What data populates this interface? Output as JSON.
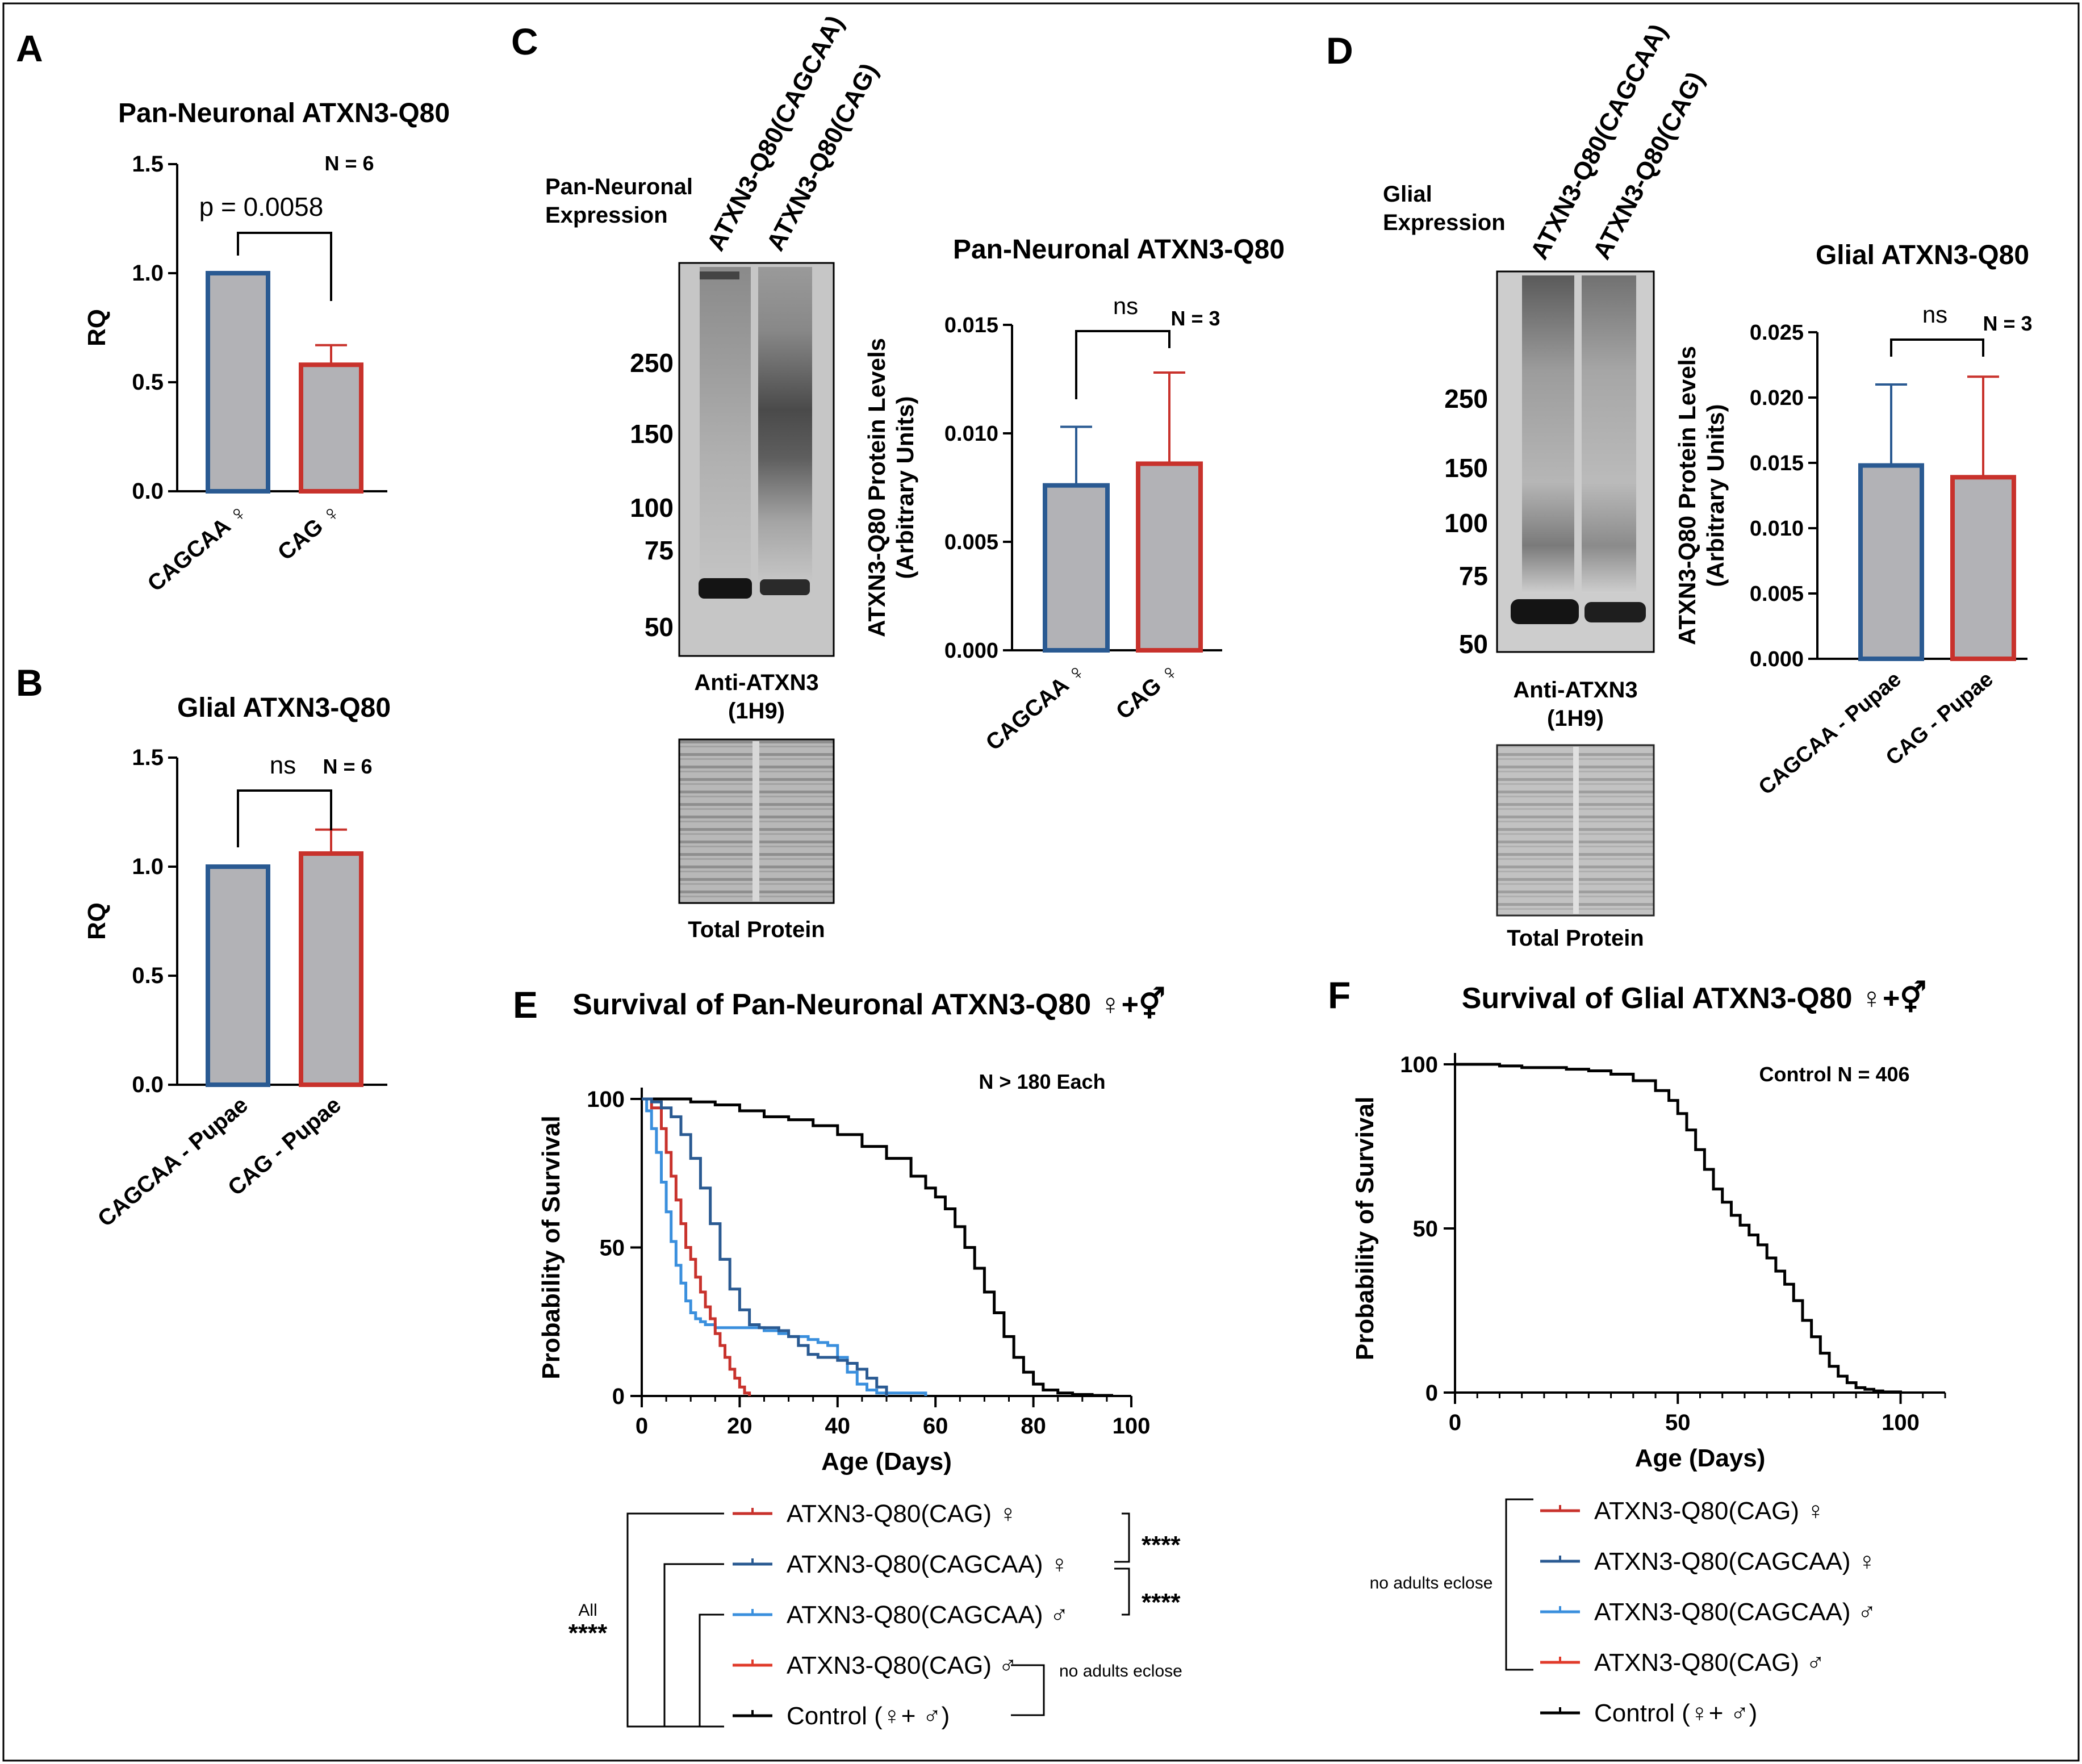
{
  "colors": {
    "blue": "#2a5a92",
    "red": "#c8322c",
    "light_blue": "#3a8fdd",
    "bright_red": "#e03a2a",
    "bar_fill": "#b2b2b6",
    "control": "#000000"
  },
  "panel_letters": {
    "A": "A",
    "B": "B",
    "C": "C",
    "D": "D",
    "E": "E",
    "F": "F"
  },
  "blots": {
    "C": {
      "expression": [
        "Pan-Neuronal",
        "Expression"
      ],
      "lanes": [
        "ATXN3-Q80(CAGCAA)",
        "ATXN3-Q80(CAG)"
      ],
      "mw_markers": [
        "250",
        "150",
        "100",
        "75",
        "50"
      ],
      "antibody": [
        "Anti-ATXN3",
        "(1H9)"
      ],
      "loading": "Total Protein"
    },
    "D": {
      "expression": [
        "Glial",
        "Expression"
      ],
      "lanes": [
        "ATXN3-Q80(CAGCAA)",
        "ATXN3-Q80(CAG)"
      ],
      "mw_markers": [
        "250",
        "150",
        "100",
        "75",
        "50"
      ],
      "antibody": [
        "Anti-ATXN3",
        "(1H9)"
      ],
      "loading": "Total Protein"
    }
  },
  "chart_data": [
    {
      "id": "A",
      "type": "bar",
      "title": "Pan-Neuronal ATXN3-Q80",
      "ylabel": "RQ",
      "xlabel": "",
      "categories": [
        "CAGCAA ♀",
        "CAG ♀"
      ],
      "values": [
        1.0,
        0.58
      ],
      "errors": [
        0,
        0.09
      ],
      "ylim": [
        0,
        1.5
      ],
      "yticks": [
        "0.0",
        "0.5",
        "1.0",
        "1.5"
      ],
      "significance": "p = 0.0058",
      "n_label": "N = 6"
    },
    {
      "id": "B",
      "type": "bar",
      "title": "Glial ATXN3-Q80",
      "ylabel": "RQ",
      "xlabel": "",
      "categories": [
        "CAGCAA - Pupae",
        "CAG - Pupae"
      ],
      "values": [
        1.0,
        1.06
      ],
      "errors": [
        0,
        0.11
      ],
      "ylim": [
        0,
        1.5
      ],
      "yticks": [
        "0.0",
        "0.5",
        "1.0",
        "1.5"
      ],
      "significance": "ns",
      "n_label": "N = 6"
    },
    {
      "id": "C",
      "type": "bar",
      "title": "Pan-Neuronal ATXN3-Q80",
      "ylabel": [
        "ATXN3-Q80 Protein Levels",
        "(Arbitrary Units)"
      ],
      "xlabel": "",
      "categories": [
        "CAGCAA ♀",
        "CAG ♀"
      ],
      "values": [
        0.0076,
        0.0086
      ],
      "errors": [
        0.0027,
        0.0042
      ],
      "ylim": [
        0,
        0.015
      ],
      "yticks": [
        "0.000",
        "0.005",
        "0.010",
        "0.015"
      ],
      "significance": "ns",
      "n_label": "N = 3"
    },
    {
      "id": "D",
      "type": "bar",
      "title": "Glial ATXN3-Q80",
      "ylabel": [
        "ATXN3-Q80 Protein Levels",
        "(Arbitrary Units)"
      ],
      "xlabel": "",
      "categories": [
        "CAGCAA - Pupae",
        "CAG - Pupae"
      ],
      "values": [
        0.0148,
        0.0139
      ],
      "errors": [
        0.0062,
        0.0077
      ],
      "ylim": [
        0,
        0.025
      ],
      "yticks": [
        "0.000",
        "0.005",
        "0.010",
        "0.015",
        "0.020",
        "0.025"
      ],
      "significance": "ns",
      "n_label": "N = 3"
    },
    {
      "id": "E",
      "type": "line",
      "title": "Survival of Pan-Neuronal ATXN3-Q80 ♀+⚥",
      "xlabel": "Age (Days)",
      "ylabel": "Probability of Survival",
      "xlim": [
        0,
        100
      ],
      "ylim": [
        0,
        100
      ],
      "xticks": [
        "0",
        "20",
        "40",
        "60",
        "80",
        "100"
      ],
      "yticks": [
        "0",
        "50",
        "100"
      ],
      "n_label": "N > 180 Each",
      "series": [
        {
          "name": "ATXN3-Q80(CAG) ♀",
          "color": "#c8322c",
          "x": [
            0,
            2,
            4,
            5,
            6,
            7,
            8,
            9,
            10,
            11,
            12,
            13,
            14,
            15,
            16,
            17,
            18,
            19,
            20,
            21,
            22
          ],
          "y": [
            100,
            97,
            90,
            82,
            74,
            66,
            58,
            50,
            46,
            40,
            35,
            30,
            26,
            21,
            17,
            13,
            9,
            6,
            3,
            1,
            0
          ]
        },
        {
          "name": "ATXN3-Q80(CAGCAA) ♀",
          "color": "#2a5a92",
          "x": [
            0,
            2,
            4,
            6,
            8,
            10,
            12,
            14,
            16,
            18,
            20,
            22,
            24,
            26,
            28,
            30,
            32,
            34,
            36,
            38,
            40,
            42,
            44,
            46,
            48,
            50
          ],
          "y": [
            100,
            99,
            97,
            94,
            88,
            80,
            70,
            58,
            46,
            36,
            29,
            24,
            23,
            23,
            22,
            20,
            17,
            14,
            13,
            13,
            12,
            11,
            9,
            6,
            3,
            0
          ]
        },
        {
          "name": "ATXN3-Q80(CAGCAA) ♂",
          "color": "#3a8fdd",
          "x": [
            0,
            1,
            2,
            3,
            4,
            5,
            6,
            7,
            8,
            9,
            10,
            11,
            12,
            13,
            14,
            15,
            20,
            25,
            28,
            30,
            32,
            34,
            36,
            38,
            40,
            42,
            44,
            46,
            48,
            50,
            55,
            58
          ],
          "y": [
            100,
            96,
            90,
            82,
            72,
            62,
            52,
            44,
            38,
            32,
            28,
            26,
            25,
            24,
            24,
            23,
            23,
            22,
            21,
            20,
            20,
            19,
            18,
            17,
            13,
            8,
            4,
            2,
            1,
            1,
            1,
            0
          ]
        },
        {
          "name": "ATXN3-Q80(CAG) ♂",
          "color": "#e03a2a",
          "x": [],
          "y": []
        },
        {
          "name": "Control (♀+ ♂)",
          "color": "#000000",
          "x": [
            0,
            5,
            10,
            15,
            20,
            25,
            30,
            35,
            40,
            45,
            50,
            55,
            58,
            60,
            62,
            64,
            66,
            68,
            70,
            72,
            74,
            76,
            78,
            80,
            82,
            85,
            88,
            92,
            96
          ],
          "y": [
            100,
            100,
            99,
            98,
            96,
            94,
            93,
            91,
            88,
            84,
            80,
            74,
            70,
            67,
            63,
            57,
            50,
            43,
            35,
            28,
            20,
            13,
            8,
            4,
            2,
            1,
            0.5,
            0.2,
            0
          ]
        }
      ],
      "legend_annotations": {
        "stat1": "****",
        "stat2": "****",
        "all_label": "All",
        "all_stat": "****",
        "no_eclose": "no adults eclose"
      }
    },
    {
      "id": "F",
      "type": "line",
      "title": "Survival of Glial ATXN3-Q80 ♀+⚥",
      "xlabel": "Age (Days)",
      "ylabel": "Probability of Survival",
      "xlim": [
        0,
        110
      ],
      "ylim": [
        0,
        100
      ],
      "xticks": [
        "0",
        "50",
        "100"
      ],
      "yticks": [
        "0",
        "50",
        "100"
      ],
      "n_label": "Control N = 406",
      "series": [
        {
          "name": "ATXN3-Q80(CAG) ♀",
          "color": "#c8322c",
          "x": [],
          "y": []
        },
        {
          "name": "ATXN3-Q80(CAGCAA) ♀",
          "color": "#2a5a92",
          "x": [],
          "y": []
        },
        {
          "name": "ATXN3-Q80(CAGCAA) ♂",
          "color": "#3a8fdd",
          "x": [],
          "y": []
        },
        {
          "name": "ATXN3-Q80(CAG) ♂",
          "color": "#e03a2a",
          "x": [],
          "y": []
        },
        {
          "name": "Control (♀+ ♂)",
          "color": "#000000",
          "x": [
            0,
            5,
            10,
            15,
            20,
            25,
            30,
            35,
            40,
            45,
            48,
            50,
            52,
            54,
            56,
            58,
            60,
            62,
            64,
            66,
            68,
            70,
            72,
            74,
            76,
            78,
            80,
            82,
            84,
            86,
            88,
            90,
            92,
            94,
            96,
            100
          ],
          "y": [
            100,
            100,
            99.5,
            99,
            99,
            98.5,
            98,
            97,
            95,
            92,
            89,
            85,
            80,
            74,
            68,
            62,
            58,
            54,
            51,
            48,
            45,
            41,
            37,
            33,
            28,
            22,
            17,
            12,
            8,
            5,
            3,
            1.5,
            1,
            0.5,
            0.2,
            0
          ]
        }
      ],
      "legend_annotations": {
        "no_eclose": "no adults eclose"
      }
    }
  ]
}
